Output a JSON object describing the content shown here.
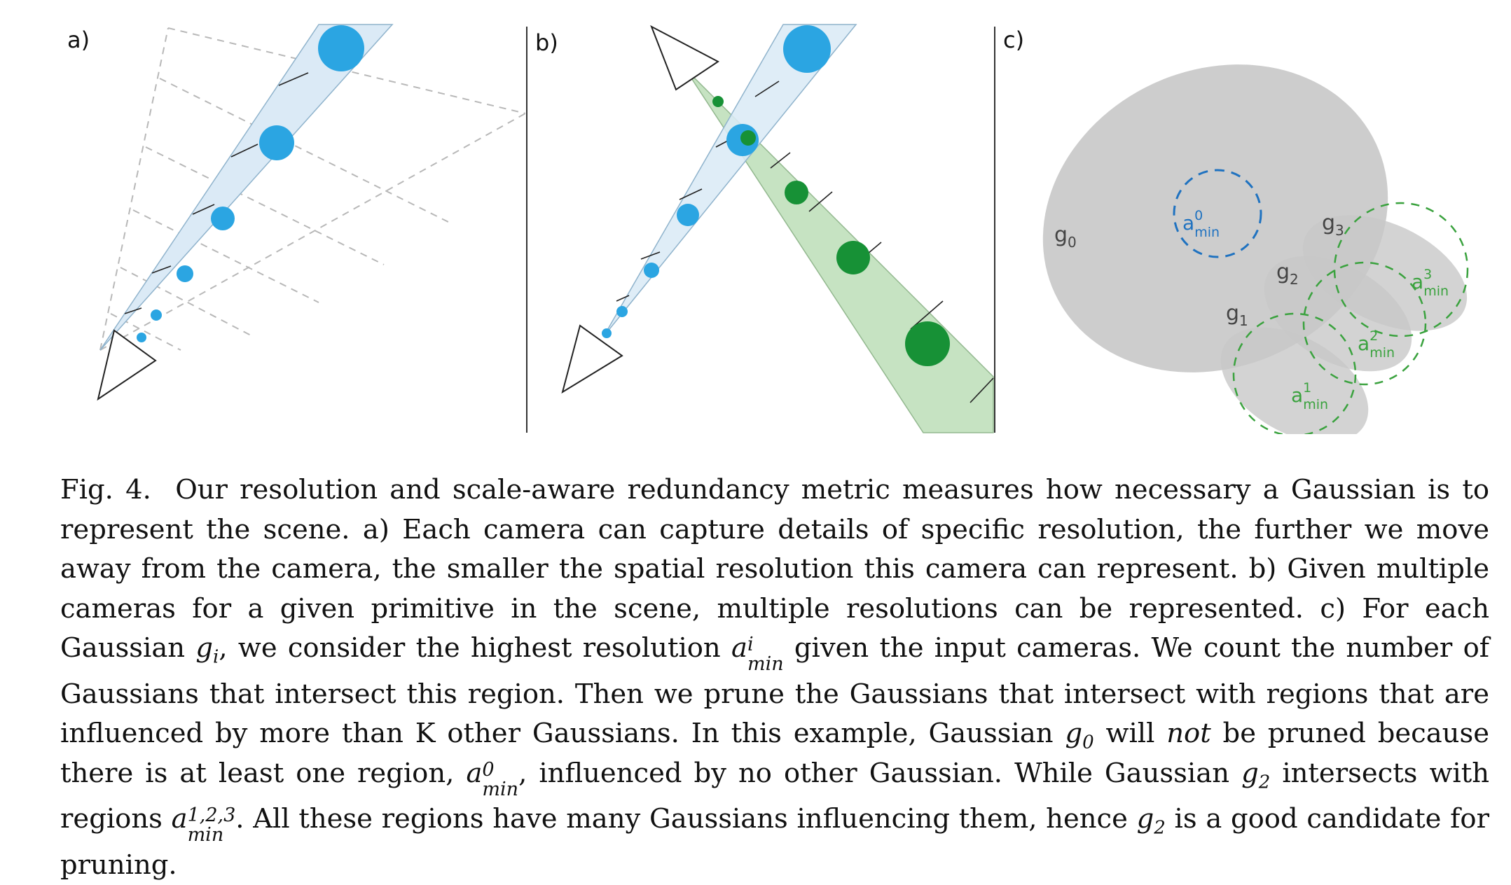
{
  "figure": {
    "panels": [
      "a)",
      "b)",
      "c)"
    ],
    "gaussian_labels": [
      {
        "base": "g",
        "sub": "0"
      },
      {
        "base": "g",
        "sub": "1"
      },
      {
        "base": "g",
        "sub": "2"
      },
      {
        "base": "g",
        "sub": "3"
      }
    ],
    "region_labels": [
      {
        "base": "a",
        "sup": "0",
        "sub": "min"
      },
      {
        "base": "a",
        "sup": "1",
        "sub": "min"
      },
      {
        "base": "a",
        "sup": "2",
        "sub": "min"
      },
      {
        "base": "a",
        "sup": "3",
        "sub": "min"
      }
    ],
    "colors": {
      "blue": "#2ba5e2",
      "blue_fill": "#dbeaf6",
      "green": "#179136",
      "green_fill": "#c6e3c2",
      "gray_fill": "#c8c8c8",
      "region_blue": "#1f72c0",
      "region_green": "#3aa23e"
    }
  },
  "caption": {
    "label": "Fig. 4.",
    "s1": "Our resolution and scale-aware redundancy metric measures how necessary a Gaussian is to represent the scene. a) Each camera can capture details of specific resolution, the further we move away from the camera, the smaller the spatial resolution this camera can represent. b) Given multiple cameras for a given primitive in the scene, multiple resolutions can be represented. c) For each Gaussian",
    "gi_base": "g",
    "gi_sub": "i",
    "s2": ", we consider the highest resolution",
    "ai_base": "a",
    "ai_sup": "i",
    "ai_sub": "min",
    "s3": "given the input cameras. We count the number of Gaussians that intersect this region. Then we prune the Gaussians that intersect with regions that are influenced by more than K other Gaussians. In this example, Gaussian",
    "g0_base": "g",
    "g0_sub": "0",
    "s4": "will",
    "not": "not",
    "s5": "be pruned because there is at least one region,",
    "a0_base": "a",
    "a0_sup": "0",
    "a0_sub": "min",
    "s6": ", influenced by no other Gaussian. While Gaussian",
    "g2_base": "g",
    "g2_sub": "2",
    "s7": "intersects with regions",
    "a123_base": "a",
    "a123_sup": "1,2,3",
    "a123_sub": "min",
    "s8": ". All these regions have many Gaussians influencing them, hence",
    "g2b_base": "g",
    "g2b_sub": "2",
    "s9": "is a good candidate for pruning."
  }
}
